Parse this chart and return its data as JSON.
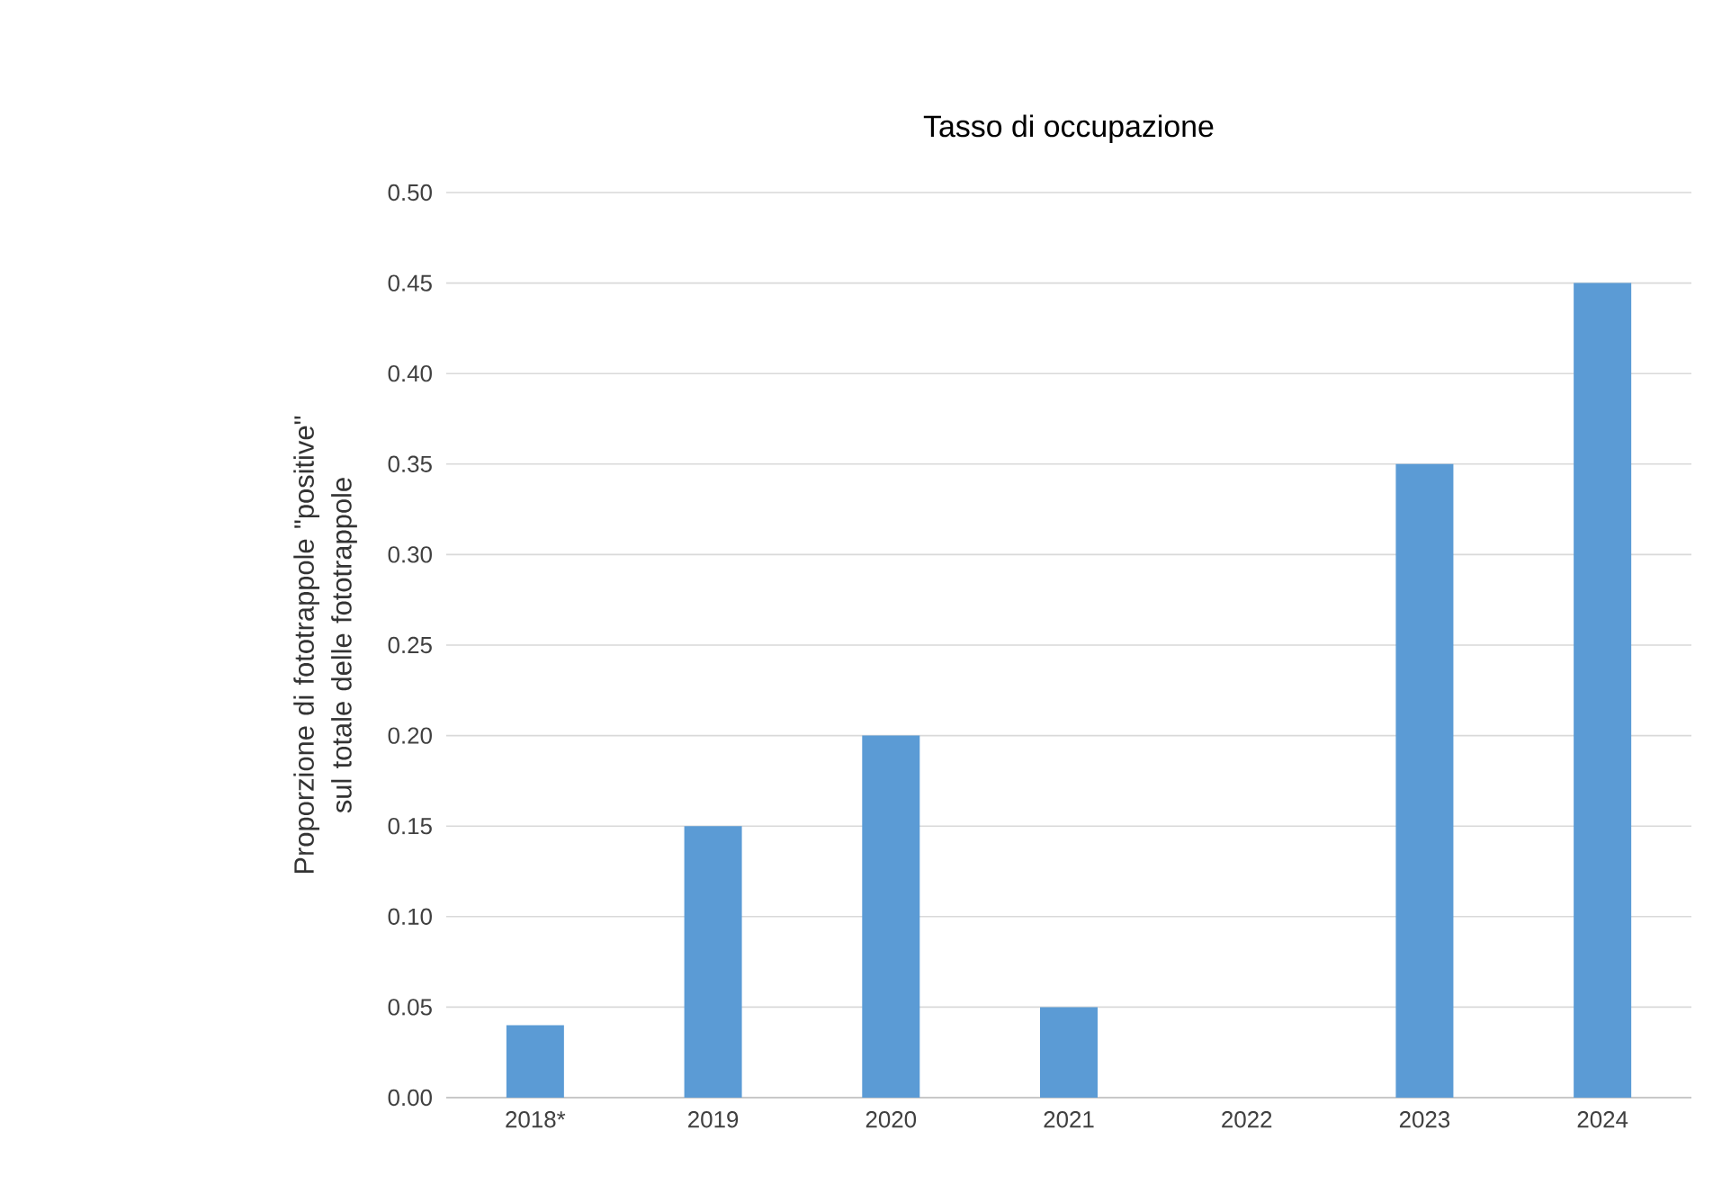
{
  "chart_data": {
    "type": "bar",
    "title": "Tasso di occupazione",
    "ylabel": "Proporzione di fototrappole \"positive\" sul totale delle fototrappole",
    "categories": [
      "2018*",
      "2019",
      "2020",
      "2021",
      "2022",
      "2023",
      "2024"
    ],
    "values": [
      0.04,
      0.15,
      0.2,
      0.05,
      0,
      0.35,
      0.45
    ],
    "color": "#5b9bd5",
    "ylim": [
      0,
      0.5
    ],
    "yticks": [
      {
        "value": 0,
        "label": "0.00"
      },
      {
        "value": 0.05,
        "label": "0.05"
      },
      {
        "value": 0.1,
        "label": "0.10"
      },
      {
        "value": 0.15,
        "label": "0.15"
      },
      {
        "value": 0.2,
        "label": "0.20"
      },
      {
        "value": 0.25,
        "label": "0.25"
      },
      {
        "value": 0.3,
        "label": "0.30"
      },
      {
        "value": 0.35,
        "label": "0.35"
      },
      {
        "value": 0.4,
        "label": "0.40"
      },
      {
        "value": 0.45,
        "label": "0.45"
      },
      {
        "value": 0.5,
        "label": "0.50"
      }
    ],
    "grid": "y"
  }
}
